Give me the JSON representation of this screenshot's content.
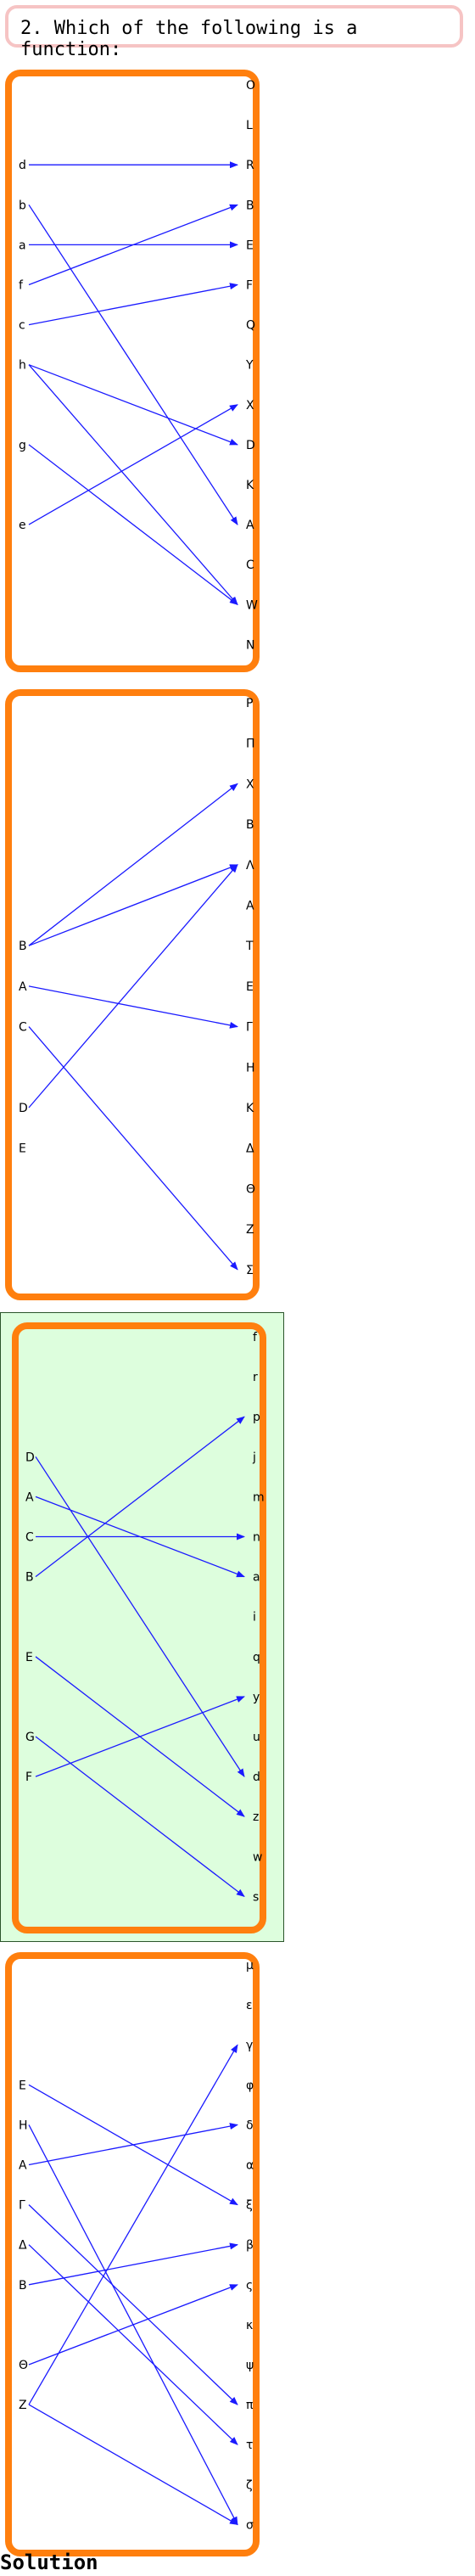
{
  "question": {
    "text": "2. Which of the following is a function:"
  },
  "solution_label": "Solution",
  "colors": {
    "arrow": "#1a1aff",
    "card_border": "#ff7f0e",
    "correct_bg": "#ddfedd",
    "question_border": "#f6c4c4"
  },
  "options": [
    {
      "id": "option-1",
      "correct": false,
      "domain": [
        "d",
        "b",
        "a",
        "f",
        "c",
        "h",
        "g",
        "e"
      ],
      "codomain": [
        "O",
        "L",
        "R",
        "B",
        "E",
        "F",
        "Q",
        "Y",
        "X",
        "D",
        "K",
        "A",
        "C",
        "W",
        "N"
      ],
      "arrows": [
        [
          "d",
          "R"
        ],
        [
          "b",
          "A"
        ],
        [
          "a",
          "E"
        ],
        [
          "f",
          "B"
        ],
        [
          "c",
          "F"
        ],
        [
          "h",
          "D"
        ],
        [
          "h",
          "W"
        ],
        [
          "g",
          "W"
        ],
        [
          "e",
          "X"
        ]
      ]
    },
    {
      "id": "option-2",
      "correct": false,
      "domain": [
        "B",
        "A",
        "C",
        "D",
        "E"
      ],
      "codomain": [
        "P",
        "Π",
        "X",
        "B",
        "Λ",
        "A",
        "T",
        "E",
        "Γ",
        "H",
        "K",
        "Δ",
        "Θ",
        "Z",
        "Σ"
      ],
      "arrows": [
        [
          "B",
          "X"
        ],
        [
          "B",
          "Λ"
        ],
        [
          "A",
          "Γ"
        ],
        [
          "C",
          "Σ"
        ],
        [
          "D",
          "Λ"
        ]
      ]
    },
    {
      "id": "option-3",
      "correct": true,
      "domain": [
        "D",
        "A",
        "C",
        "B",
        "E",
        "G",
        "F"
      ],
      "codomain": [
        "f",
        "r",
        "p",
        "j",
        "m",
        "n",
        "a",
        "i",
        "q",
        "y",
        "u",
        "d",
        "z",
        "w",
        "s"
      ],
      "arrows": [
        [
          "D",
          "d"
        ],
        [
          "A",
          "a"
        ],
        [
          "C",
          "n"
        ],
        [
          "B",
          "p"
        ],
        [
          "E",
          "z"
        ],
        [
          "G",
          "s"
        ],
        [
          "F",
          "y"
        ]
      ]
    },
    {
      "id": "option-4",
      "correct": false,
      "domain": [
        "E",
        "H",
        "A",
        "Γ",
        "Δ",
        "B",
        "Θ",
        "Z"
      ],
      "codomain": [
        "μ",
        "ε",
        "γ",
        "φ",
        "δ",
        "α",
        "ξ",
        "β",
        "ς",
        "κ",
        "ψ",
        "π",
        "τ",
        "ζ",
        "σ"
      ],
      "arrows": [
        [
          "E",
          "ξ"
        ],
        [
          "H",
          "σ"
        ],
        [
          "A",
          "δ"
        ],
        [
          "Γ",
          "π"
        ],
        [
          "Δ",
          "τ"
        ],
        [
          "B",
          "β"
        ],
        [
          "Θ",
          "ς"
        ],
        [
          "Z",
          "γ"
        ],
        [
          "Z",
          "σ"
        ]
      ]
    }
  ]
}
